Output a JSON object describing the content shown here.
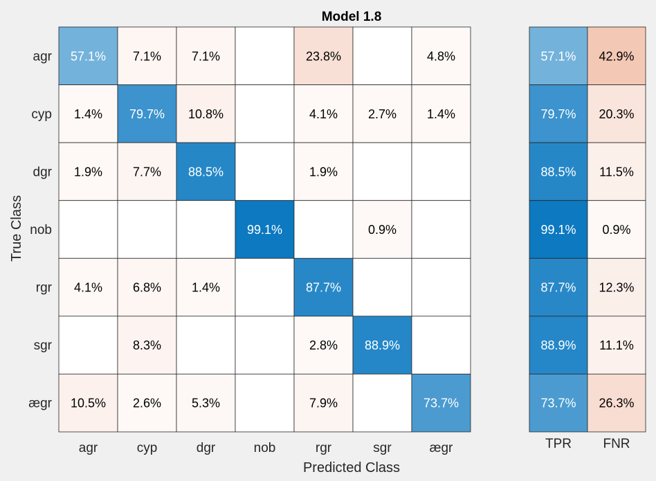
{
  "chart_data": {
    "type": "heatmap",
    "title": "Model 1.8",
    "xlabel": "Predicted Class",
    "ylabel": "True Class",
    "classes": [
      "agr",
      "cyp",
      "dgr",
      "nob",
      "rgr",
      "sgr",
      "ægr"
    ],
    "matrix": [
      [
        57.1,
        7.1,
        7.1,
        null,
        23.8,
        null,
        4.8
      ],
      [
        1.4,
        79.7,
        10.8,
        null,
        4.1,
        2.7,
        1.4
      ],
      [
        1.9,
        7.7,
        88.5,
        null,
        1.9,
        null,
        null
      ],
      [
        null,
        null,
        null,
        99.1,
        null,
        0.9,
        null
      ],
      [
        4.1,
        6.8,
        1.4,
        null,
        87.7,
        null,
        null
      ],
      [
        null,
        8.3,
        null,
        null,
        2.8,
        88.9,
        null
      ],
      [
        10.5,
        2.6,
        5.3,
        null,
        7.9,
        null,
        73.7
      ]
    ],
    "summary_columns": [
      "TPR",
      "FNR"
    ],
    "summary": [
      [
        57.1,
        42.9
      ],
      [
        79.7,
        20.3
      ],
      [
        88.5,
        11.5
      ],
      [
        99.1,
        0.9
      ],
      [
        87.7,
        12.3
      ],
      [
        88.9,
        11.1
      ],
      [
        73.7,
        26.3
      ]
    ],
    "value_suffix": "%",
    "colors": {
      "positive": "#0072bd",
      "negative": "#d95319",
      "empty": "#ffffff",
      "light_text": "#ffffff",
      "dark_text": "#000000"
    }
  }
}
